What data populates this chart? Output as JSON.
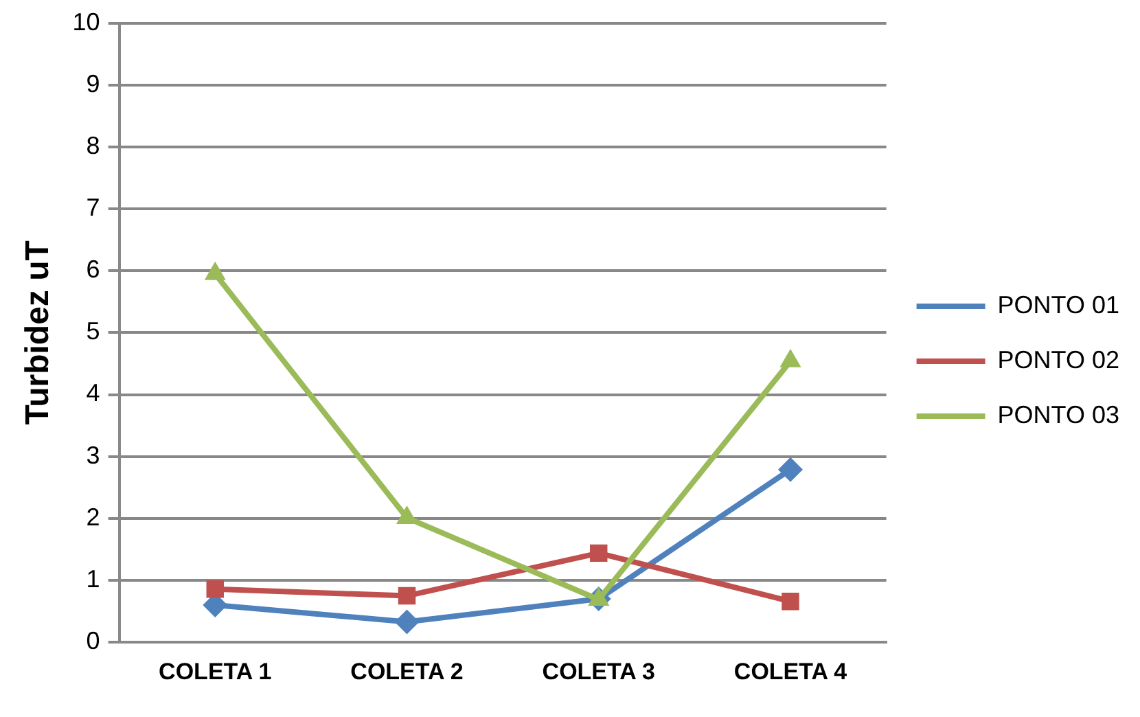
{
  "chart_data": {
    "type": "line",
    "ylabel": "Turbidez uT",
    "categories": [
      "COLETA 1",
      "COLETA 2",
      "COLETA 3",
      "COLETA 4"
    ],
    "series": [
      {
        "name": "PONTO 01",
        "color": "#4f81bd",
        "marker": "diamond",
        "values": [
          0.6,
          0.33,
          0.7,
          2.79
        ]
      },
      {
        "name": "PONTO 02",
        "color": "#c0504d",
        "marker": "square",
        "values": [
          0.86,
          0.75,
          1.44,
          0.66
        ]
      },
      {
        "name": "PONTO 03",
        "color": "#9bbb59",
        "marker": "triangle",
        "values": [
          5.95,
          2.01,
          0.69,
          4.54
        ]
      }
    ],
    "ylim": [
      0,
      10
    ],
    "yticks": [
      0,
      1,
      2,
      3,
      4,
      5,
      6,
      7,
      8,
      9,
      10
    ],
    "grid": "y",
    "legend": "right"
  }
}
